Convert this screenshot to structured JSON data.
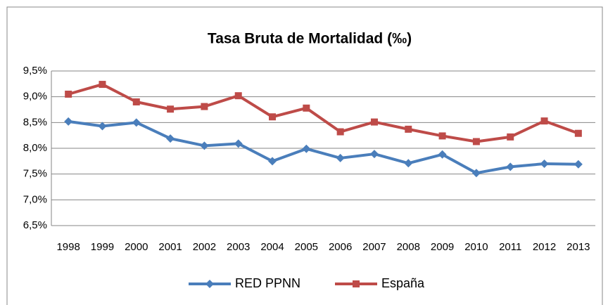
{
  "chart_data": {
    "type": "line",
    "title": "Tasa Bruta de Mortalidad (‰)",
    "categories": [
      "1998",
      "1999",
      "2000",
      "2001",
      "2002",
      "2003",
      "2004",
      "2005",
      "2006",
      "2007",
      "2008",
      "2009",
      "2010",
      "2011",
      "2012",
      "2013"
    ],
    "series": [
      {
        "name": "RED PPNN",
        "color": "#4a7ebb",
        "marker": "diamond",
        "values": [
          8.52,
          8.43,
          8.5,
          8.19,
          8.05,
          8.09,
          7.75,
          7.99,
          7.81,
          7.89,
          7.71,
          7.88,
          7.52,
          7.64,
          7.7,
          7.69
        ]
      },
      {
        "name": "España",
        "color": "#be4b48",
        "marker": "square",
        "values": [
          9.05,
          9.24,
          8.9,
          8.76,
          8.81,
          9.02,
          8.61,
          8.78,
          8.32,
          8.51,
          8.37,
          8.24,
          8.13,
          8.22,
          8.53,
          8.29
        ]
      }
    ],
    "ylim": [
      6.5,
      9.5
    ],
    "yticks": [
      {
        "value": 6.5,
        "label": "6,5%"
      },
      {
        "value": 7,
        "label": "7,0%"
      },
      {
        "value": 7.5,
        "label": "7,5%"
      },
      {
        "value": 8,
        "label": "8,0%"
      },
      {
        "value": 8.5,
        "label": "8,5%"
      },
      {
        "value": 9,
        "label": "9,0%"
      },
      {
        "value": 9.5,
        "label": "9,5%"
      }
    ],
    "grid": true,
    "legend": "bottom"
  }
}
